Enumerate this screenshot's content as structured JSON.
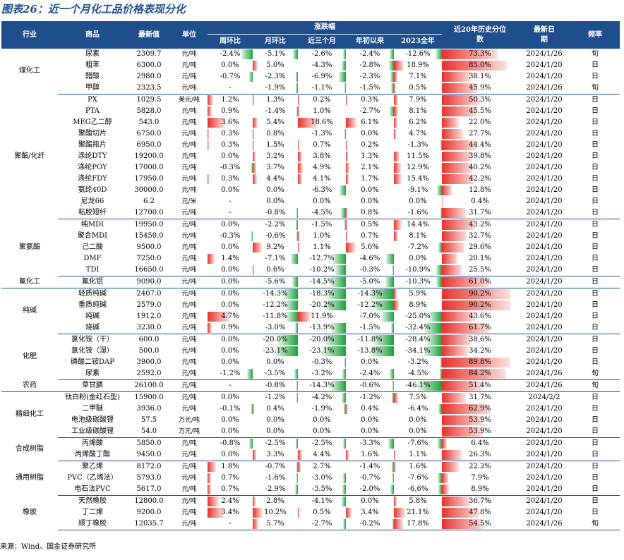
{
  "title": "图表26：近一个月化工品价格表现分化",
  "source": "来源：Wind、国金证券研究所",
  "colors": {
    "header_bg": "#1f4e8c",
    "pos_bar": "#e8312b",
    "neg_bar": "#1aa33b"
  },
  "headers": {
    "industry": "行业",
    "product": "商品",
    "latest": "最新值",
    "unit": "单位",
    "change_group": "涨跌幅",
    "week": "周环比",
    "month": "月环比",
    "three_month": "近三个月",
    "ytd": "年初以来",
    "year2023": "2023全年",
    "pct": "近20年历史分位数",
    "date": "最新日期",
    "freq": "频率"
  },
  "groups": [
    {
      "name": "煤化工",
      "rows": [
        [
          "尿素",
          "2309.7",
          "元/吨",
          "-2.4%",
          "-5.1%",
          "-2.6%",
          "-2.4%",
          "-12.6%",
          "73.3%",
          "2024/1/26",
          "旬"
        ],
        [
          "粗苯",
          "6300.0",
          "元/吨",
          "0.0%",
          "5.0%",
          "-4.3%",
          "-2.8%",
          "18.9%",
          "85.0%",
          "2024/1/20",
          "日"
        ],
        [
          "醋酸",
          "2980.0",
          "元/吨",
          "-0.7%",
          "-2.3%",
          "-6.9%",
          "-2.3%",
          "7.1%",
          "38.1%",
          "2024/1/20",
          "日"
        ],
        [
          "甲醇",
          "2323.5",
          "元/吨",
          "-",
          "-1.9%",
          "-1.1%",
          "-1.5%",
          "0.5%",
          "45.9%",
          "2024/1/26",
          "旬"
        ]
      ]
    },
    {
      "name": "聚酯/化纤",
      "rows": [
        [
          "PX",
          "1029.5",
          "美元/吨",
          "1.2%",
          "1.3%",
          "0.2%",
          "0.3%",
          "7.9%",
          "50.3%",
          "2024/1/20",
          "日"
        ],
        [
          "PTA",
          "5828.0",
          "元/吨",
          "0.9%",
          "-1.4%",
          "1.0%",
          "-2.7%",
          "8.1%",
          "45.5%",
          "2024/1/20",
          "日"
        ],
        [
          "MEG乙二醇",
          "543.0",
          "元/吨",
          "3.6%",
          "5.4%",
          "18.6%",
          "6.1%",
          "6.2%",
          "22.0%",
          "2024/1/20",
          "日"
        ],
        [
          "聚酯切片",
          "6750.0",
          "元/吨",
          "0.3%",
          "0.8%",
          "-1.3%",
          "0.0%",
          "4.7%",
          "27.7%",
          "2024/1/20",
          "日"
        ],
        [
          "聚酯瓶片",
          "6950.0",
          "元/吨",
          "0.3%",
          "1.5%",
          "0.7%",
          "0.2%",
          "-1.3%",
          "44.4%",
          "2024/1/20",
          "日"
        ],
        [
          "涤纶DTY",
          "19200.0",
          "元/吨",
          "0.0%",
          "3.2%",
          "3.8%",
          "1.3%",
          "11.5%",
          "39.8%",
          "2024/1/20",
          "日"
        ],
        [
          "涤纶POY",
          "17000.0",
          "元/吨",
          "-0.3%",
          "3.7%",
          "4.9%",
          "2.1%",
          "12.9%",
          "40.2%",
          "2024/1/20",
          "日"
        ],
        [
          "涤纶FDY",
          "17950.0",
          "元/吨",
          "0.3%",
          "4.4%",
          "4.1%",
          "1.7%",
          "15.4%",
          "42.2%",
          "2024/1/20",
          "日"
        ],
        [
          "氨纶40D",
          "30000.0",
          "元/吨",
          "0.0%",
          "0.0%",
          "-6.3%",
          "0.0%",
          "-9.1%",
          "12.8%",
          "2024/1/20",
          "日"
        ],
        [
          "尼龙66",
          "6.2",
          "元/米",
          "-",
          "0.0%",
          "0.0%",
          "0.0%",
          "0.0%",
          "0.4%",
          "2024/1/20",
          "日"
        ],
        [
          "粘胶短纤",
          "12700.0",
          "元/吨",
          "-",
          "-0.8%",
          "-4.5%",
          "0.8%",
          "-1.6%",
          "31.7%",
          "2024/1/20",
          "日"
        ]
      ]
    },
    {
      "name": "聚氨酯",
      "rows": [
        [
          "纯MDI",
          "19950.0",
          "元/吨",
          "0.0%",
          "-2.2%",
          "-1.5%",
          "0.5%",
          "14.4%",
          "43.2%",
          "2024/1/20",
          "日"
        ],
        [
          "聚合MDI",
          "15450.0",
          "元/吨",
          "-0.3%",
          "-0.6%",
          "1.0%",
          "0.7%",
          "8.1%",
          "32.7%",
          "2024/1/20",
          "日"
        ],
        [
          "己二酸",
          "9500.0",
          "元/吨",
          "0.0%",
          "9.2%",
          "1.1%",
          "5.6%",
          "-7.2%",
          "29.6%",
          "2024/1/20",
          "日"
        ],
        [
          "DMF",
          "7250.0",
          "元/吨",
          "1.4%",
          "-7.1%",
          "-12.7%",
          "-4.6%",
          "0.0%",
          "20.1%",
          "2024/1/20",
          "日"
        ],
        [
          "TDI",
          "16650.0",
          "元/吨",
          "0.0%",
          "0.6%",
          "-10.2%",
          "-0.3%",
          "-10.9%",
          "25.5%",
          "2024/1/20",
          "日"
        ]
      ]
    },
    {
      "name": "氟化工",
      "rows": [
        [
          "氟化铝",
          "9090.0",
          "元/吨",
          "0.0%",
          "-5.6%",
          "-14.5%",
          "-5.0%",
          "-10.3%",
          "61.0%",
          "2024/1/20",
          "日"
        ]
      ]
    },
    {
      "name": "纯碱",
      "rows": [
        [
          "轻质纯碱",
          "2407.0",
          "元/吨",
          "0.0%",
          "-14.3%",
          "-18.3%",
          "-14.3%",
          "5.9%",
          "90.2%",
          "2024/1/20",
          "日"
        ],
        [
          "重质纯碱",
          "2579.0",
          "元/吨",
          "0.0%",
          "-12.2%",
          "-20.2%",
          "-12.2%",
          "8.9%",
          "90.2%",
          "2024/1/20",
          "日"
        ],
        [
          "纯碱",
          "1912.0",
          "元/吨",
          "4.7%",
          "-11.8%",
          "11.9%",
          "-7.0%",
          "-25.0%",
          "43.6%",
          "2024/1/20",
          "日"
        ],
        [
          "烧碱",
          "3230.0",
          "元/吨",
          "0.9%",
          "-3.0%",
          "-13.9%",
          "-1.5%",
          "-32.4%",
          "61.7%",
          "2024/1/20",
          "日"
        ]
      ]
    },
    {
      "name": "化肥",
      "rows": [
        [
          "氯化铵（干）",
          "600.0",
          "元/吨",
          "0.0%",
          "-20.0%",
          "-20.0%",
          "-11.8%",
          "-28.4%",
          "38.6%",
          "2024/1/20",
          "日"
        ],
        [
          "氯化铵（湿）",
          "500.0",
          "元/吨",
          "0.0%",
          "-23.1%",
          "-23.1%",
          "-13.8%",
          "-34.1%",
          "34.2%",
          "2024/1/20",
          "日"
        ],
        [
          "磷酸二铵DAP",
          "3900.0",
          "元/吨",
          "0.0%",
          "0.0%",
          "-0.3%",
          "0.0%",
          "-3.2%",
          "89.8%",
          "2024/1/20",
          "日"
        ],
        [
          "尿素",
          "2592.0",
          "元/吨",
          "-1.2%",
          "-3.5%",
          "-3.2%",
          "-2.4%",
          "-4.5%",
          "84.2%",
          "2024/1/26",
          "旬"
        ]
      ]
    },
    {
      "name": "农药",
      "rows": [
        [
          "草甘膦",
          "26100.0",
          "元/吨",
          "-",
          "-0.8%",
          "-14.3%",
          "-0.6%",
          "-46.1%",
          "51.4%",
          "2024/1/26",
          "旬"
        ]
      ]
    },
    {
      "name": "精细化工",
      "rows": [
        [
          "钛白粉(金红石型)",
          "15900.0",
          "元/吨",
          "0.0%",
          "-1.2%",
          "-4.2%",
          "-1.2%",
          "7.5%",
          "31.7%",
          "2024/2/2",
          "日"
        ],
        [
          "二甲醚",
          "3936.0",
          "元/吨",
          "-0.1%",
          "0.4%",
          "-1.9%",
          "0.4%",
          "-6.4%",
          "62.9%",
          "2024/1/20",
          "日"
        ],
        [
          "电池级碳酸锂",
          "57.5",
          "万元/吨",
          "0.0%",
          "0.0%",
          "0.0%",
          "0.0%",
          "0.0%",
          "53.9%",
          "2024/1/20",
          "日"
        ],
        [
          "工业级碳酸锂",
          "54.0",
          "万元/吨",
          "0.0%",
          "0.0%",
          "0.0%",
          "0.0%",
          "0.0%",
          "53.9%",
          "2024/1/20",
          "日"
        ]
      ]
    },
    {
      "name": "合成树脂",
      "rows": [
        [
          "丙烯酸",
          "5850.0",
          "元/吨",
          "-0.8%",
          "-2.5%",
          "-2.5%",
          "-3.3%",
          "-7.6%",
          "6.4%",
          "2024/1/20",
          "日"
        ],
        [
          "丙烯酸丁酯",
          "9450.0",
          "元/吨",
          "0.0%",
          "3.3%",
          "4.4%",
          "1.6%",
          "1.1%",
          "26.3%",
          "2024/1/20",
          "日"
        ]
      ]
    },
    {
      "name": "通用树脂",
      "rows": [
        [
          "聚乙烯",
          "8172.0",
          "元/吨",
          "1.8%",
          "-0.7%",
          "2.7%",
          "-1.4%",
          "1.6%",
          "22.2%",
          "2024/1/20",
          "日"
        ],
        [
          "PVC（乙烯法）",
          "5793.0",
          "元/吨",
          "0.7%",
          "-1.6%",
          "-3.0%",
          "-0.7%",
          "-7.6%",
          "7.9%",
          "2024/1/20",
          "日"
        ],
        [
          "电石法PVC",
          "5617.0",
          "元/吨",
          "0.7%",
          "-2.9%",
          "-3.5%",
          "-2.0%",
          "-6.6%",
          "8.9%",
          "2024/1/20",
          "日"
        ]
      ]
    },
    {
      "name": "橡胶",
      "rows": [
        [
          "天然橡胶",
          "12800.0",
          "元/吨",
          "2.4%",
          "2.8%",
          "-4.1%",
          "0.0%",
          "5.8%",
          "36.7%",
          "2024/1/20",
          "日"
        ],
        [
          "丁二烯",
          "9200.0",
          "元/吨",
          "3.4%",
          "10.2%",
          "0.5%",
          "3.4%",
          "21.1%",
          "47.8%",
          "2024/1/20",
          "日"
        ],
        [
          "顺丁橡胶",
          "12035.7",
          "元/吨",
          "-",
          "5.7%",
          "-2.7%",
          "-0.2%",
          "17.8%",
          "54.5%",
          "2024/1/26",
          "旬"
        ]
      ]
    }
  ]
}
